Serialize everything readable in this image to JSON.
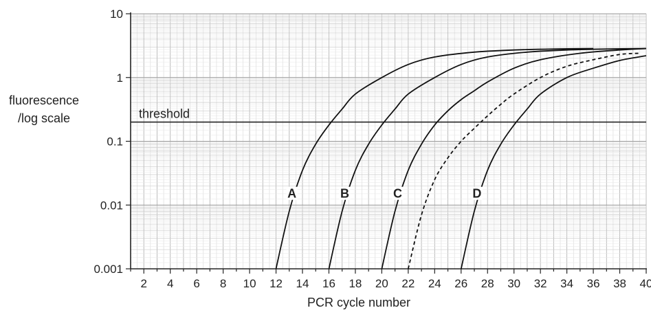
{
  "chart_data": {
    "type": "line",
    "title": "",
    "xlabel": "PCR cycle number",
    "ylabel_lines": [
      "fluorescence",
      "/log scale"
    ],
    "xlim": [
      1,
      40
    ],
    "ylim": [
      0.001,
      10
    ],
    "y_scale": "log",
    "grid": true,
    "x_ticks": [
      "2",
      "4",
      "6",
      "8",
      "10",
      "12",
      "14",
      "16",
      "18",
      "20",
      "22",
      "24",
      "26",
      "28",
      "30",
      "32",
      "34",
      "36",
      "38",
      "40"
    ],
    "y_ticks": [
      "10",
      "1",
      "0.1",
      "0.01",
      "0.001"
    ],
    "threshold": {
      "label": "threshold",
      "y": 0.2
    },
    "series": [
      {
        "name": "A",
        "dashed": false,
        "points": [
          [
            12,
            0.001
          ],
          [
            13,
            0.008
          ],
          [
            14,
            0.035
          ],
          [
            15,
            0.09
          ],
          [
            16,
            0.18
          ],
          [
            17,
            0.32
          ],
          [
            18,
            0.55
          ],
          [
            20,
            1.0
          ],
          [
            22,
            1.6
          ],
          [
            24,
            2.1
          ],
          [
            27,
            2.5
          ],
          [
            30,
            2.7
          ],
          [
            33,
            2.8
          ],
          [
            36,
            2.85
          ]
        ]
      },
      {
        "name": "B",
        "dashed": false,
        "points": [
          [
            16,
            0.001
          ],
          [
            17,
            0.008
          ],
          [
            18,
            0.035
          ],
          [
            19,
            0.09
          ],
          [
            20,
            0.18
          ],
          [
            21,
            0.32
          ],
          [
            22,
            0.55
          ],
          [
            24,
            1.0
          ],
          [
            26,
            1.6
          ],
          [
            28,
            2.1
          ],
          [
            31,
            2.5
          ],
          [
            34,
            2.7
          ],
          [
            37,
            2.8
          ],
          [
            40,
            2.85
          ]
        ]
      },
      {
        "name": "C",
        "dashed": false,
        "points": [
          [
            20,
            0.001
          ],
          [
            21,
            0.008
          ],
          [
            22,
            0.035
          ],
          [
            23,
            0.09
          ],
          [
            24,
            0.18
          ],
          [
            25,
            0.3
          ],
          [
            26,
            0.45
          ],
          [
            27,
            0.62
          ],
          [
            28,
            0.85
          ],
          [
            30,
            1.4
          ],
          [
            32,
            1.9
          ],
          [
            35,
            2.4
          ],
          [
            38,
            2.7
          ],
          [
            40,
            2.85
          ]
        ]
      },
      {
        "name": "",
        "dashed": true,
        "points": [
          [
            22,
            0.001
          ],
          [
            23,
            0.007
          ],
          [
            24,
            0.025
          ],
          [
            25,
            0.055
          ],
          [
            26,
            0.1
          ],
          [
            27,
            0.16
          ],
          [
            28,
            0.25
          ],
          [
            29,
            0.38
          ],
          [
            30,
            0.55
          ],
          [
            32,
            1.0
          ],
          [
            34,
            1.5
          ],
          [
            36,
            1.9
          ],
          [
            38,
            2.3
          ],
          [
            39.5,
            2.4
          ]
        ]
      },
      {
        "name": "D",
        "dashed": false,
        "points": [
          [
            26,
            0.001
          ],
          [
            27,
            0.008
          ],
          [
            28,
            0.035
          ],
          [
            29,
            0.09
          ],
          [
            30,
            0.18
          ],
          [
            31,
            0.32
          ],
          [
            32,
            0.55
          ],
          [
            34,
            1.0
          ],
          [
            36,
            1.4
          ],
          [
            38,
            1.85
          ],
          [
            40,
            2.2
          ]
        ]
      }
    ],
    "labels": [
      {
        "text": "A",
        "x": 13.2,
        "y": 0.013
      },
      {
        "text": "B",
        "x": 17.2,
        "y": 0.013
      },
      {
        "text": "C",
        "x": 21.2,
        "y": 0.013
      },
      {
        "text": "D",
        "x": 27.2,
        "y": 0.013
      }
    ]
  }
}
